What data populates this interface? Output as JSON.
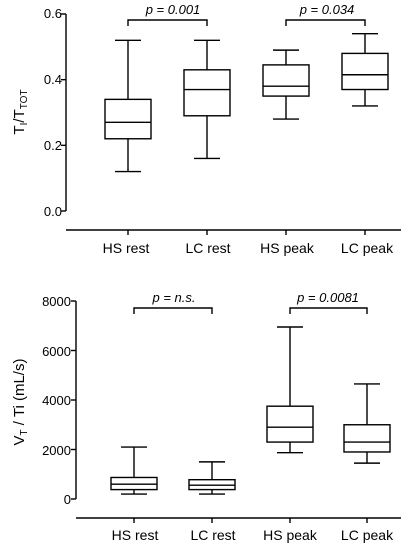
{
  "chart_data": [
    {
      "type": "boxplot",
      "categories": [
        "HS rest",
        "LC rest",
        "HS peak",
        "LC peak"
      ],
      "ylabel": {
        "base": "T",
        "sub1": "I",
        "mid": "/T",
        "sub2": "TOT"
      },
      "ylim": [
        0.0,
        0.6
      ],
      "yticks": [
        "0.0",
        "0.2",
        "0.4",
        "0.6"
      ],
      "boxes": [
        {
          "min": 0.12,
          "q1": 0.22,
          "median": 0.27,
          "q3": 0.34,
          "max": 0.52
        },
        {
          "min": 0.16,
          "q1": 0.29,
          "median": 0.37,
          "q3": 0.43,
          "max": 0.52
        },
        {
          "min": 0.28,
          "q1": 0.35,
          "median": 0.38,
          "q3": 0.445,
          "max": 0.49
        },
        {
          "min": 0.32,
          "q1": 0.37,
          "median": 0.415,
          "q3": 0.48,
          "max": 0.54
        }
      ],
      "annotations": [
        {
          "from": 0,
          "to": 1,
          "text": "p = 0.001"
        },
        {
          "from": 2,
          "to": 3,
          "text": "p = 0.034"
        }
      ]
    },
    {
      "type": "boxplot",
      "categories": [
        "HS rest",
        "LC rest",
        "HS peak",
        "LC peak"
      ],
      "ylabel": {
        "base": "V",
        "sub1": "T",
        "mid": " / Ti (mL/s)",
        "sub2": ""
      },
      "ylim": [
        0,
        8000
      ],
      "yticks": [
        "0",
        "2000",
        "4000",
        "6000",
        "8000"
      ],
      "boxes": [
        {
          "min": 200,
          "q1": 380,
          "median": 600,
          "q3": 870,
          "max": 2100
        },
        {
          "min": 200,
          "q1": 380,
          "median": 560,
          "q3": 780,
          "max": 1500
        },
        {
          "min": 1870,
          "q1": 2300,
          "median": 2900,
          "q3": 3750,
          "max": 6950
        },
        {
          "min": 1450,
          "q1": 1900,
          "median": 2300,
          "q3": 3000,
          "max": 4650
        }
      ],
      "annotations": [
        {
          "from": 0,
          "to": 1,
          "text": "p = n.s."
        },
        {
          "from": 2,
          "to": 3,
          "text": "p = 0.0081"
        }
      ]
    }
  ]
}
